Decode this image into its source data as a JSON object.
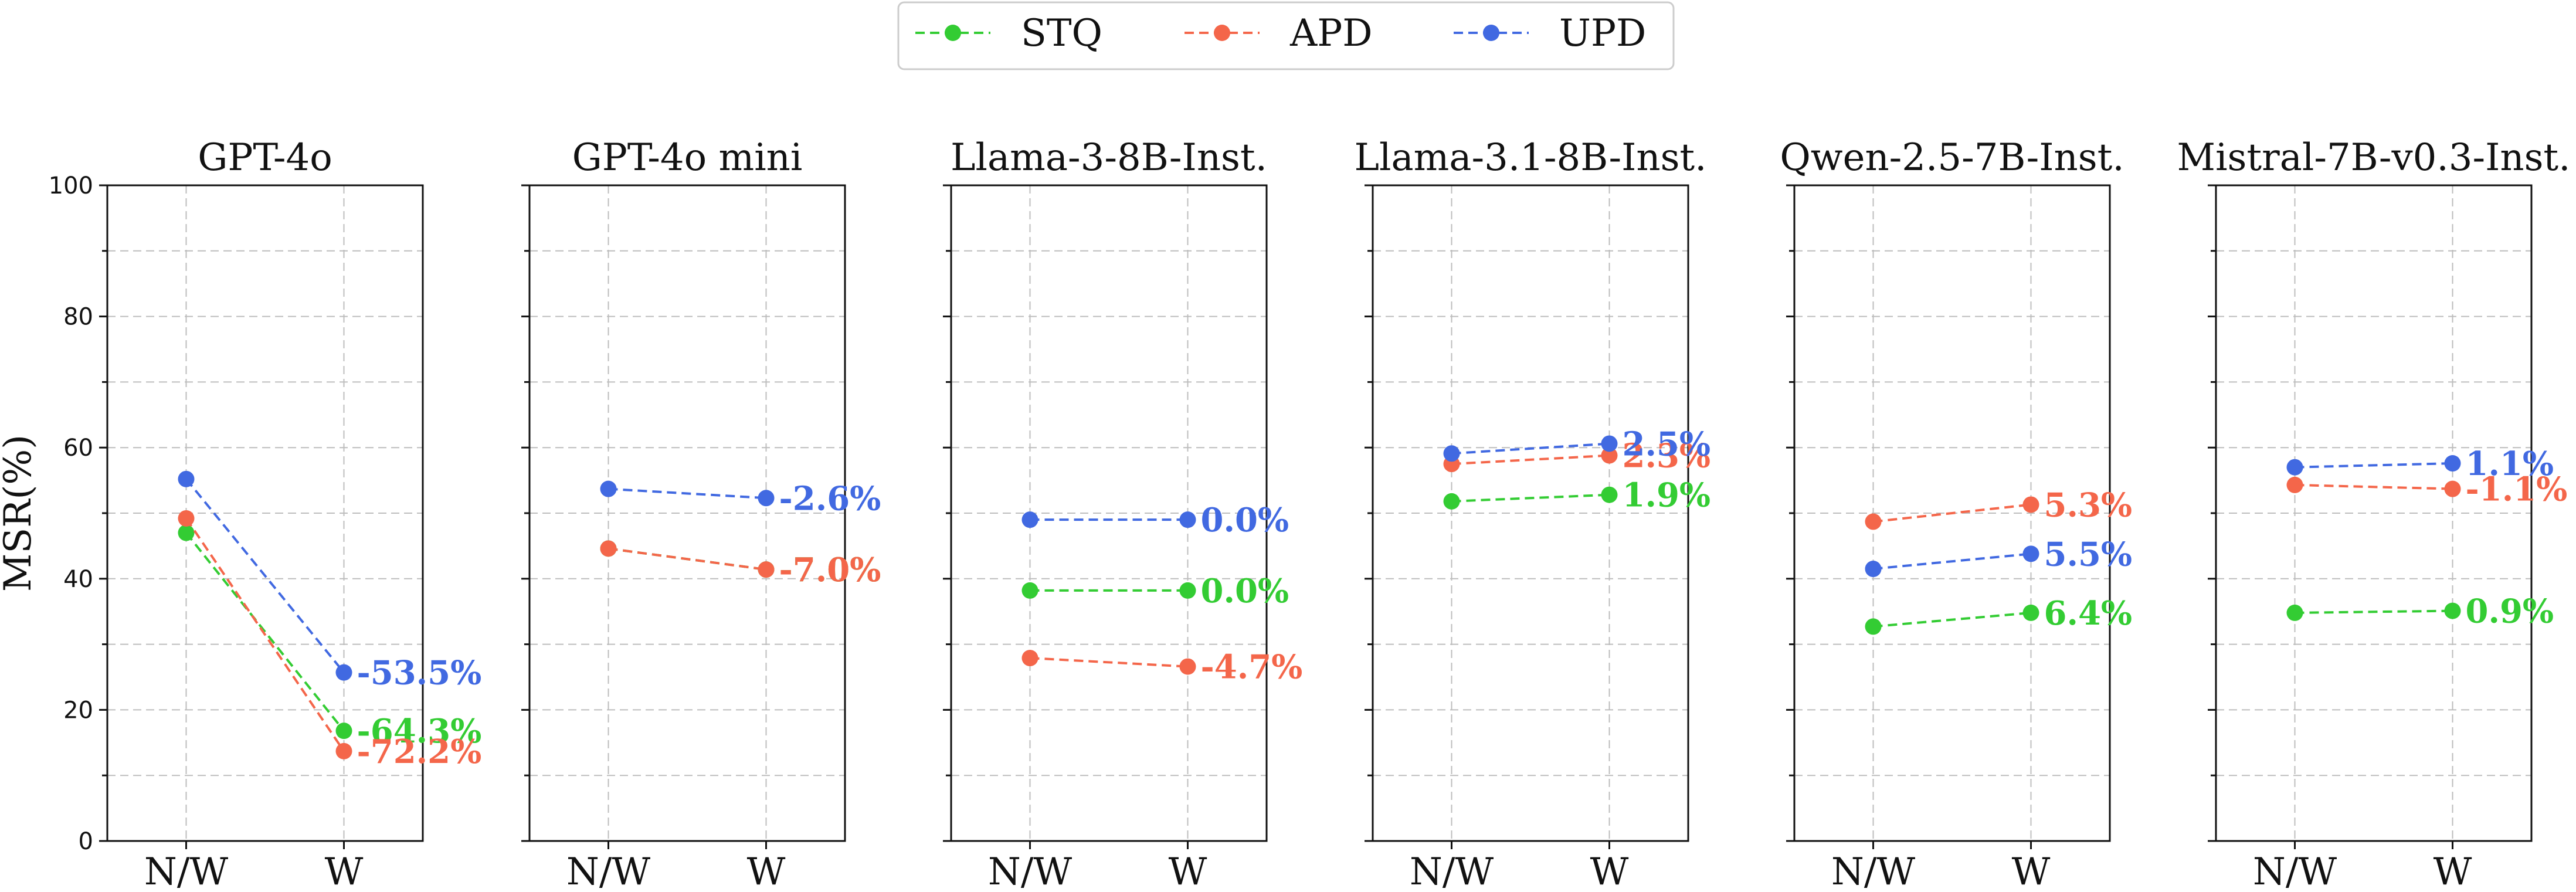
{
  "chart_data": {
    "type": "line",
    "ylabel": "MSR(%)",
    "ylim": [
      0,
      100
    ],
    "yticks": [
      0,
      20,
      40,
      60,
      80,
      100
    ],
    "x_categories": [
      "N/W",
      "W"
    ],
    "grid": true,
    "legend": {
      "placement": "top-center",
      "entries": [
        {
          "key": "STQ",
          "label": "STQ",
          "color": "#33cc33"
        },
        {
          "key": "APD",
          "label": "APD",
          "color": "#f4664a"
        },
        {
          "key": "UPD",
          "label": "UPD",
          "color": "#4169e1"
        }
      ]
    },
    "panels": [
      {
        "title": "GPT-4o",
        "series": [
          {
            "key": "STQ",
            "values": [
              47.0,
              16.8
            ],
            "label": "-64.3%"
          },
          {
            "key": "APD",
            "values": [
              49.2,
              13.7
            ],
            "label": "-72.2%"
          },
          {
            "key": "UPD",
            "values": [
              55.2,
              25.7
            ],
            "label": "-53.5%"
          }
        ]
      },
      {
        "title": "GPT-4o mini",
        "series": [
          {
            "key": "STQ",
            "values": [
              44.6,
              41.4
            ],
            "label": "-7.0%"
          },
          {
            "key": "APD",
            "values": [
              44.6,
              41.4
            ],
            "label": "-7.0%"
          },
          {
            "key": "UPD",
            "values": [
              53.7,
              52.3
            ],
            "label": "-2.6%"
          }
        ]
      },
      {
        "title": "Llama-3-8B-Inst.",
        "series": [
          {
            "key": "STQ",
            "values": [
              38.2,
              38.2
            ],
            "label": "0.0%"
          },
          {
            "key": "APD",
            "values": [
              27.9,
              26.6
            ],
            "label": "-4.7%"
          },
          {
            "key": "UPD",
            "values": [
              49.0,
              49.0
            ],
            "label": "0.0%"
          }
        ]
      },
      {
        "title": "Llama-3.1-8B-Inst.",
        "series": [
          {
            "key": "STQ",
            "values": [
              51.8,
              52.8
            ],
            "label": "1.9%"
          },
          {
            "key": "APD",
            "values": [
              57.5,
              58.8
            ],
            "label": "2.3%"
          },
          {
            "key": "UPD",
            "values": [
              59.1,
              60.6
            ],
            "label": "2.5%"
          }
        ]
      },
      {
        "title": "Qwen-2.5-7B-Inst.",
        "series": [
          {
            "key": "STQ",
            "values": [
              32.7,
              34.8
            ],
            "label": "6.4%"
          },
          {
            "key": "APD",
            "values": [
              48.7,
              51.3
            ],
            "label": "5.3%"
          },
          {
            "key": "UPD",
            "values": [
              41.5,
              43.8
            ],
            "label": "5.5%"
          }
        ]
      },
      {
        "title": "Mistral-7B-v0.3-Inst.",
        "series": [
          {
            "key": "STQ",
            "values": [
              34.8,
              35.1
            ],
            "label": "0.9%"
          },
          {
            "key": "APD",
            "values": [
              54.3,
              53.7
            ],
            "label": "-1.1%"
          },
          {
            "key": "UPD",
            "values": [
              57.0,
              57.6
            ],
            "label": "1.1%"
          }
        ]
      }
    ]
  }
}
